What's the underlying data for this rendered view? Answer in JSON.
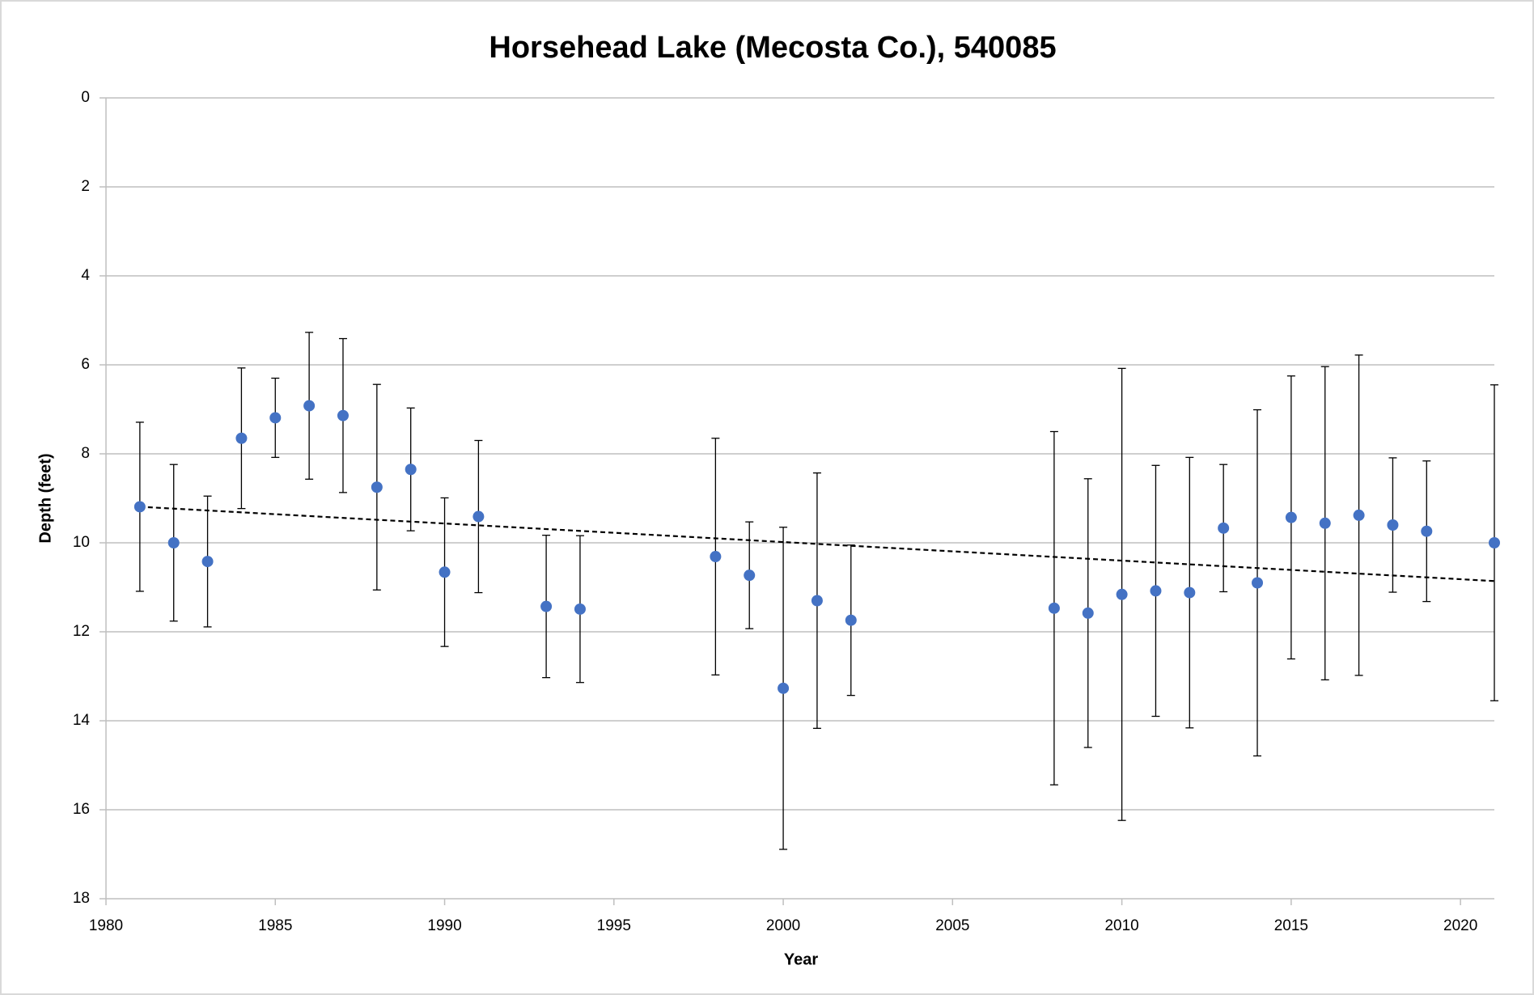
{
  "chart_data": {
    "type": "scatter",
    "title": "Horsehead Lake (Mecosta Co.), 540085",
    "x_label": "Year",
    "y_label": "Depth (feet)",
    "x": [
      1981,
      1982,
      1983,
      1984,
      1985,
      1986,
      1987,
      1988,
      1989,
      1990,
      1991,
      1993,
      1994,
      1998,
      1999,
      2000,
      2001,
      2002,
      2008,
      2009,
      2010,
      2011,
      2012,
      2013,
      2014,
      2015,
      2016,
      2017,
      2018,
      2019,
      2021
    ],
    "values": [
      9.19,
      10.0,
      10.42,
      7.65,
      7.19,
      6.92,
      7.14,
      8.75,
      8.35,
      10.66,
      9.41,
      11.43,
      11.49,
      10.31,
      10.73,
      13.27,
      11.3,
      11.74,
      11.47,
      11.58,
      11.16,
      11.08,
      11.12,
      9.67,
      10.9,
      9.43,
      9.56,
      9.38,
      9.6,
      9.74,
      10.0
    ],
    "errors": [
      1.9,
      1.76,
      1.47,
      1.58,
      0.89,
      1.65,
      1.73,
      2.31,
      1.38,
      1.67,
      1.71,
      1.6,
      1.65,
      2.66,
      1.2,
      3.62,
      2.87,
      1.69,
      3.97,
      3.02,
      5.08,
      2.82,
      3.04,
      1.43,
      3.89,
      3.18,
      3.52,
      3.6,
      1.51,
      1.58,
      3.55
    ],
    "color": "#4472c4",
    "trendline": {
      "x": [
        1981,
        2021
      ],
      "values": [
        9.19,
        10.86
      ],
      "color": "#000000"
    },
    "xlim": [
      1980,
      2021
    ],
    "xticks": [
      1980,
      1985,
      1990,
      1995,
      2000,
      2005,
      2010,
      2015,
      2020
    ],
    "ylim": [
      0,
      18
    ],
    "yticks": [
      0,
      2,
      4,
      6,
      8,
      10,
      12,
      14,
      16,
      18
    ],
    "y_reversed": true,
    "grid": true
  }
}
